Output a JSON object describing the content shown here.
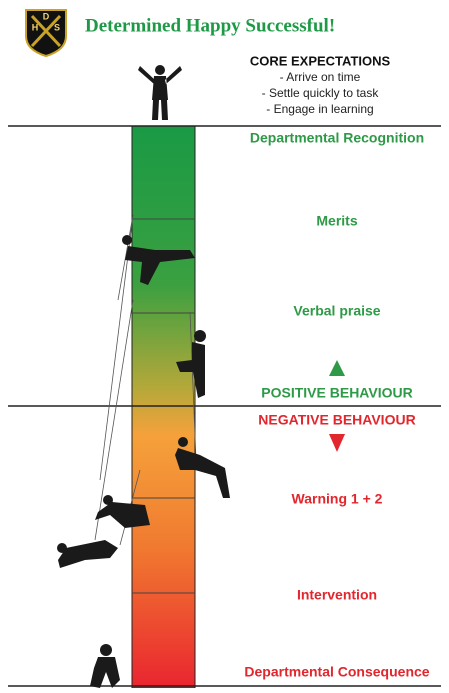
{
  "header": {
    "title": "Determined Happy Successful!",
    "logo_letters": [
      "H",
      "D",
      "S"
    ]
  },
  "expectations": {
    "heading": "CORE EXPECTATIONS",
    "items": [
      "- Arrive on time",
      "- Settle quickly to task",
      "- Engage in learning"
    ]
  },
  "levels": {
    "positive": [
      "Departmental Recognition",
      "Merits",
      "Verbal praise",
      "POSITIVE BEHAVIOUR"
    ],
    "negative": [
      "NEGATIVE BEHAVIOUR",
      "Warning 1 + 2",
      "Intervention",
      "Departmental Consequence"
    ]
  }
}
